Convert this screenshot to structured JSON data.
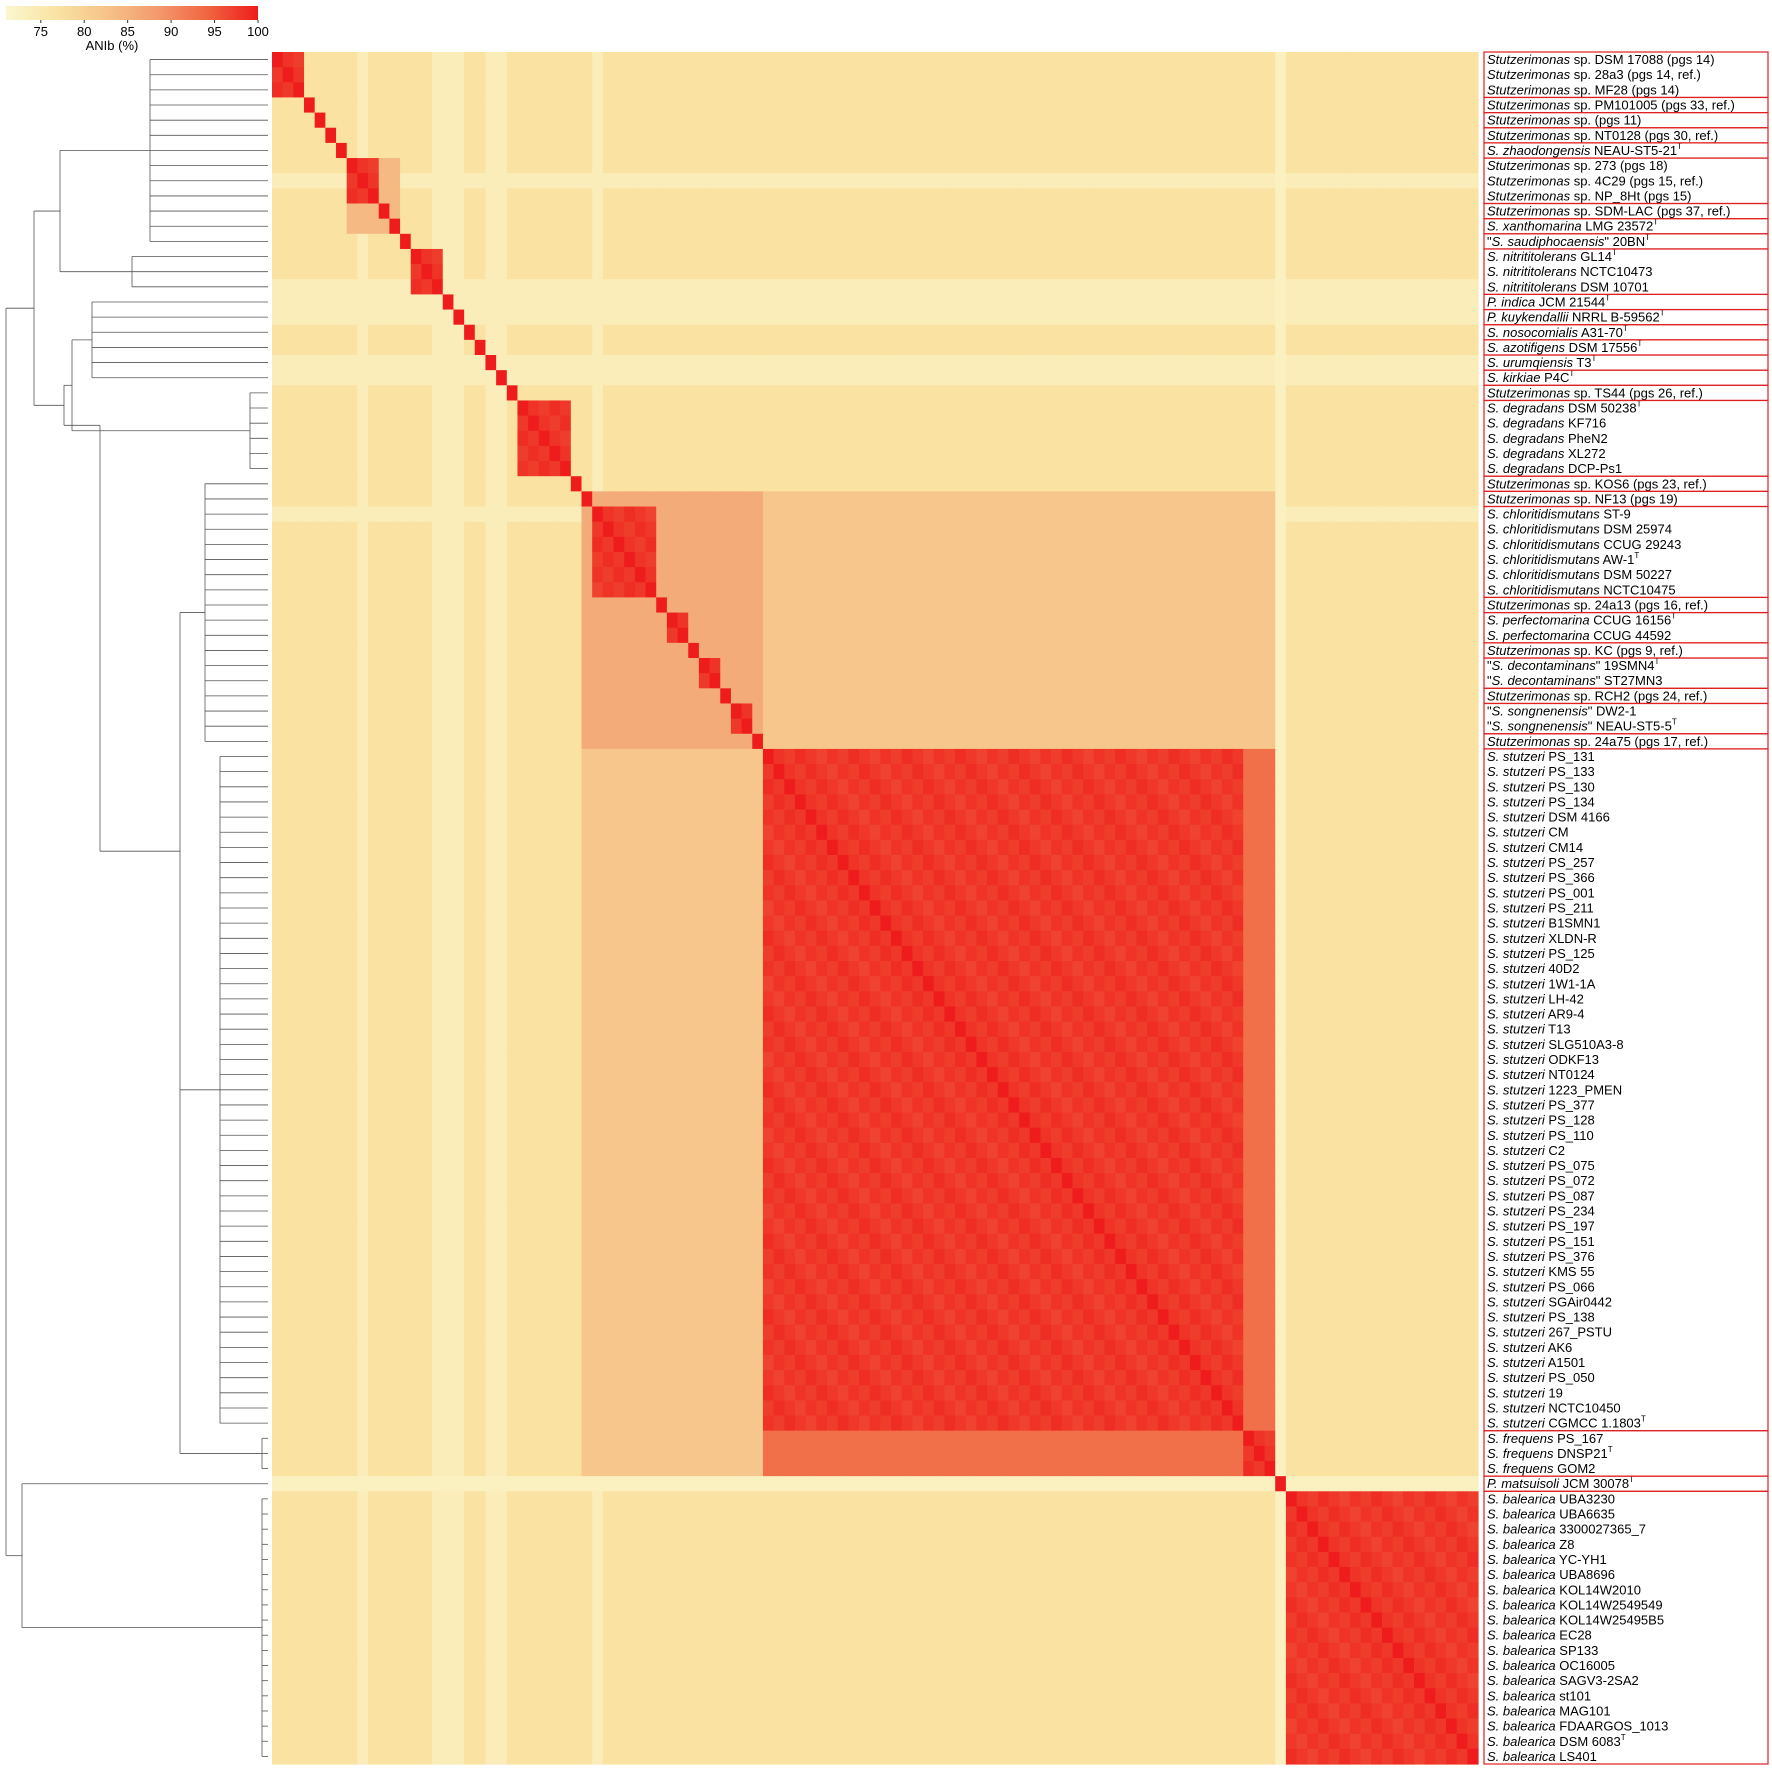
{
  "chart_data": {
    "type": "heatmap",
    "colorbar": {
      "label": "ANIb (%)",
      "ticks": [
        75,
        80,
        85,
        90,
        95,
        100
      ],
      "range": [
        71,
        100
      ],
      "colors": [
        "#fbf7d0",
        "#f9e3a3",
        "#f6c38a",
        "#f39a6e",
        "#f06540",
        "#ee1c1c"
      ]
    },
    "groups": [
      {
        "name": "Stutzerimonas sp. DSM 17088 (pgs 14)",
        "size": 3
      },
      {
        "name": "Stutzerimonas sp. PM101005 (pgs 33, ref.)",
        "size": 1
      },
      {
        "name": "Stutzerimonas sp. (pgs 11)",
        "size": 1
      },
      {
        "name": "Stutzerimonas sp. NT0128 (pgs 30, ref.)",
        "size": 1
      },
      {
        "name": "S. zhaodongensis NEAU-ST5-21T",
        "size": 1
      },
      {
        "name": "Stutzerimonas sp. 273 (pgs 18)",
        "size": 3
      },
      {
        "name": "Stutzerimonas sp. SDM-LAC (pgs 37, ref.)",
        "size": 1
      },
      {
        "name": "S. xanthomarina LMG 23572T",
        "size": 1
      },
      {
        "name": "\"S. saudiphocaensis\" 20BNT",
        "size": 1
      },
      {
        "name": "S. nitrititolerans GL14T",
        "size": 3
      },
      {
        "name": "P. indica JCM 21544T",
        "size": 1
      },
      {
        "name": "P. kuykendallii NRRL B-59562T",
        "size": 1
      },
      {
        "name": "S. nosocomialis A31-70T",
        "size": 1
      },
      {
        "name": "S. azotifigens DSM 17556T",
        "size": 1
      },
      {
        "name": "S. urumqiensis T3T",
        "size": 1
      },
      {
        "name": "S. kirkiae P4CT",
        "size": 1
      },
      {
        "name": "Stutzerimonas sp. TS44 (pgs 26, ref.)",
        "size": 1
      },
      {
        "name": "S. degradans DSM 50238T",
        "size": 5
      },
      {
        "name": "Stutzerimonas sp. KOS6 (pgs 23, ref.)",
        "size": 1
      },
      {
        "name": "Stutzerimonas sp. NF13 (pgs 19)",
        "size": 1
      },
      {
        "name": "S. chloritidismutans ST-9",
        "size": 6
      },
      {
        "name": "Stutzerimonas sp. 24a13 (pgs 16, ref.)",
        "size": 1
      },
      {
        "name": "S. perfectomarina CCUG 16156T",
        "size": 2
      },
      {
        "name": "Stutzerimonas sp. KC (pgs 9, ref.)",
        "size": 1
      },
      {
        "name": "\"S. decontaminans\" 19SMN4T",
        "size": 2
      },
      {
        "name": "Stutzerimonas sp. RCH2 (pgs 24, ref.)",
        "size": 1
      },
      {
        "name": "\"S. songnenensis\" DW2-1",
        "size": 2
      },
      {
        "name": "Stutzerimonas sp. 24a75 (pgs 17, ref.)",
        "size": 1
      },
      {
        "name": "S. stutzeri",
        "size": 45
      },
      {
        "name": "S. frequens",
        "size": 3
      },
      {
        "name": "P. matsuisoli JCM 30078T",
        "size": 1
      },
      {
        "name": "S. balearica",
        "size": 18
      }
    ],
    "rows": [
      {
        "italic": "Stutzerimonas",
        "rest": " sp. DSM 17088 (pgs 14)",
        "group": 0
      },
      {
        "italic": "Stutzerimonas",
        "rest": " sp. 28a3 (pgs 14, ref.)",
        "group": 0
      },
      {
        "italic": "Stutzerimonas",
        "rest": " sp. MF28 (pgs 14)",
        "group": 0
      },
      {
        "italic": "Stutzerimonas",
        "rest": " sp. PM101005 (pgs 33, ref.)",
        "group": 1
      },
      {
        "italic": "Stutzerimonas",
        "rest": " sp. (pgs 11)",
        "group": 2
      },
      {
        "italic": "Stutzerimonas",
        "rest": " sp. NT0128 (pgs 30, ref.)",
        "group": 3
      },
      {
        "italic": "S. zhaodongensis",
        "rest": " NEAU-ST5-21",
        "sup": "T",
        "group": 4
      },
      {
        "italic": "Stutzerimonas",
        "rest": " sp. 273 (pgs 18)",
        "group": 5
      },
      {
        "italic": "Stutzerimonas",
        "rest": " sp. 4C29 (pgs 15, ref.)",
        "group": 5
      },
      {
        "italic": "Stutzerimonas",
        "rest": " sp. NP_8Ht (pgs 15)",
        "group": 5
      },
      {
        "italic": "Stutzerimonas",
        "rest": " sp. SDM-LAC (pgs 37, ref.)",
        "group": 6
      },
      {
        "italic": "S. xanthomarina",
        "rest": " LMG 23572",
        "sup": "T",
        "group": 7
      },
      {
        "pre": "\"",
        "italic": "S. saudiphocaensis",
        "rest": "\" 20BN",
        "sup": "T",
        "group": 8
      },
      {
        "italic": "S. nitrititolerans",
        "rest": " GL14",
        "sup": "T",
        "group": 9
      },
      {
        "italic": "S. nitrititolerans",
        "rest": " NCTC10473",
        "group": 9
      },
      {
        "italic": "S. nitrititolerans",
        "rest": " DSM 10701",
        "group": 9
      },
      {
        "italic": "P. indica",
        "rest": " JCM 21544",
        "sup": "T",
        "group": 10
      },
      {
        "italic": "P. kuykendallii",
        "rest": " NRRL B-59562",
        "sup": "T",
        "group": 11
      },
      {
        "italic": "S. nosocomialis",
        "rest": " A31-70",
        "sup": "T",
        "group": 12
      },
      {
        "italic": "S. azotifigens",
        "rest": " DSM 17556",
        "sup": "T",
        "group": 13
      },
      {
        "italic": "S. urumqiensis",
        "rest": " T3",
        "sup": "T",
        "group": 14
      },
      {
        "italic": "S. kirkiae",
        "rest": " P4C",
        "sup": "T",
        "group": 15
      },
      {
        "italic": "Stutzerimonas",
        "rest": " sp. TS44 (pgs 26, ref.)",
        "group": 16
      },
      {
        "italic": "S. degradans",
        "rest": " DSM 50238",
        "sup": "T",
        "group": 17
      },
      {
        "italic": "S. degradans",
        "rest": " KF716",
        "group": 17
      },
      {
        "italic": "S. degradans",
        "rest": " PheN2",
        "group": 17
      },
      {
        "italic": "S. degradans",
        "rest": " XL272",
        "group": 17
      },
      {
        "italic": "S. degradans",
        "rest": " DCP-Ps1",
        "group": 17
      },
      {
        "italic": "Stutzerimonas",
        "rest": " sp. KOS6 (pgs 23, ref.)",
        "group": 18
      },
      {
        "italic": "Stutzerimonas",
        "rest": " sp. NF13 (pgs 19)",
        "group": 19
      },
      {
        "italic": "S. chloritidismutans",
        "rest": " ST-9",
        "group": 20
      },
      {
        "italic": "S. chloritidismutans",
        "rest": " DSM 25974",
        "group": 20
      },
      {
        "italic": "S. chloritidismutans",
        "rest": " CCUG 29243",
        "group": 20
      },
      {
        "italic": "S. chloritidismutans",
        "rest": " AW-1",
        "sup": "T",
        "group": 20
      },
      {
        "italic": "S. chloritidismutans",
        "rest": " DSM 50227",
        "group": 20
      },
      {
        "italic": "S. chloritidismutans",
        "rest": " NCTC10475",
        "group": 20
      },
      {
        "italic": "Stutzerimonas",
        "rest": " sp. 24a13 (pgs 16, ref.)",
        "group": 21
      },
      {
        "italic": "S. perfectomarina",
        "rest": " CCUG 16156",
        "sup": "T",
        "group": 22
      },
      {
        "italic": "S. perfectomarina",
        "rest": " CCUG 44592",
        "group": 22
      },
      {
        "italic": "Stutzerimonas",
        "rest": " sp. KC (pgs 9, ref.)",
        "group": 23
      },
      {
        "pre": "\"",
        "italic": "S. decontaminans",
        "rest": "\" 19SMN4",
        "sup": "T",
        "group": 24
      },
      {
        "pre": "\"",
        "italic": "S. decontaminans",
        "rest": "\" ST27MN3",
        "group": 24
      },
      {
        "italic": "Stutzerimonas",
        "rest": " sp. RCH2 (pgs 24, ref.)",
        "group": 25
      },
      {
        "pre": "\"",
        "italic": "S. songnenensis",
        "rest": "\" DW2-1",
        "group": 26
      },
      {
        "pre": "\"",
        "italic": "S. songnenensis",
        "rest": "\" NEAU-ST5-5",
        "sup": "T",
        "group": 26
      },
      {
        "italic": "Stutzerimonas",
        "rest": " sp. 24a75 (pgs 17, ref.)",
        "group": 27
      },
      {
        "italic": "S. stutzeri",
        "rest": " PS_131",
        "group": 28
      },
      {
        "italic": "S. stutzeri",
        "rest": " PS_133",
        "group": 28
      },
      {
        "italic": "S. stutzeri",
        "rest": " PS_130",
        "group": 28
      },
      {
        "italic": "S. stutzeri",
        "rest": " PS_134",
        "group": 28
      },
      {
        "italic": "S. stutzeri",
        "rest": " DSM 4166",
        "group": 28
      },
      {
        "italic": "S. stutzeri",
        "rest": " CM",
        "group": 28
      },
      {
        "italic": "S. stutzeri",
        "rest": " CM14",
        "group": 28
      },
      {
        "italic": "S. stutzeri",
        "rest": " PS_257",
        "group": 28
      },
      {
        "italic": "S. stutzeri",
        "rest": " PS_366",
        "group": 28
      },
      {
        "italic": "S. stutzeri",
        "rest": " PS_001",
        "group": 28
      },
      {
        "italic": "S. stutzeri",
        "rest": " PS_211",
        "group": 28
      },
      {
        "italic": "S. stutzeri",
        "rest": " B1SMN1",
        "group": 28
      },
      {
        "italic": "S. stutzeri",
        "rest": " XLDN-R",
        "group": 28
      },
      {
        "italic": "S. stutzeri",
        "rest": " PS_125",
        "group": 28
      },
      {
        "italic": "S. stutzeri",
        "rest": " 40D2",
        "group": 28
      },
      {
        "italic": "S. stutzeri",
        "rest": " 1W1-1A",
        "group": 28
      },
      {
        "italic": "S. stutzeri",
        "rest": " LH-42",
        "group": 28
      },
      {
        "italic": "S. stutzeri",
        "rest": " AR9-4",
        "group": 28
      },
      {
        "italic": "S. stutzeri",
        "rest": " T13",
        "group": 28
      },
      {
        "italic": "S. stutzeri",
        "rest": " SLG510A3-8",
        "group": 28
      },
      {
        "italic": "S. stutzeri",
        "rest": " ODKF13",
        "group": 28
      },
      {
        "italic": "S. stutzeri",
        "rest": " NT0124",
        "group": 28
      },
      {
        "italic": "S. stutzeri",
        "rest": " 1223_PMEN",
        "group": 28
      },
      {
        "italic": "S. stutzeri",
        "rest": " PS_377",
        "group": 28
      },
      {
        "italic": "S. stutzeri",
        "rest": " PS_128",
        "group": 28
      },
      {
        "italic": "S. stutzeri",
        "rest": " PS_110",
        "group": 28
      },
      {
        "italic": "S. stutzeri",
        "rest": " C2",
        "group": 28
      },
      {
        "italic": "S. stutzeri",
        "rest": " PS_075",
        "group": 28
      },
      {
        "italic": "S. stutzeri",
        "rest": " PS_072",
        "group": 28
      },
      {
        "italic": "S. stutzeri",
        "rest": " PS_087",
        "group": 28
      },
      {
        "italic": "S. stutzeri",
        "rest": " PS_234",
        "group": 28
      },
      {
        "italic": "S. stutzeri",
        "rest": " PS_197",
        "group": 28
      },
      {
        "italic": "S. stutzeri",
        "rest": " PS_151",
        "group": 28
      },
      {
        "italic": "S. stutzeri",
        "rest": " PS_376",
        "group": 28
      },
      {
        "italic": "S. stutzeri",
        "rest": " KMS 55",
        "group": 28
      },
      {
        "italic": "S. stutzeri",
        "rest": " PS_066",
        "group": 28
      },
      {
        "italic": "S. stutzeri",
        "rest": " SGAir0442",
        "group": 28
      },
      {
        "italic": "S. stutzeri",
        "rest": " PS_138",
        "group": 28
      },
      {
        "italic": "S. stutzeri",
        "rest": " 267_PSTU",
        "group": 28
      },
      {
        "italic": "S. stutzeri",
        "rest": " AK6",
        "group": 28
      },
      {
        "italic": "S. stutzeri",
        "rest": " A1501",
        "group": 28
      },
      {
        "italic": "S. stutzeri",
        "rest": " PS_050",
        "group": 28
      },
      {
        "italic": "S. stutzeri",
        "rest": " 19",
        "group": 28
      },
      {
        "italic": "S. stutzeri",
        "rest": " NCTC10450",
        "group": 28
      },
      {
        "italic": "S. stutzeri",
        "rest": " CGMCC 1.1803",
        "sup": "T",
        "group": 28
      },
      {
        "italic": "S. frequens",
        "rest": " PS_167",
        "group": 29
      },
      {
        "italic": "S. frequens",
        "rest": " DNSP21",
        "sup": "T",
        "group": 29
      },
      {
        "italic": "S. frequens",
        "rest": " GOM2",
        "group": 29
      },
      {
        "italic": "P. matsuisoli",
        "rest": " JCM 30078",
        "sup": "T",
        "group": 30
      },
      {
        "italic": "S. balearica",
        "rest": " UBA3230",
        "group": 31
      },
      {
        "italic": "S. balearica",
        "rest": " UBA6635",
        "group": 31
      },
      {
        "italic": "S. balearica",
        "rest": " 3300027365_7",
        "group": 31
      },
      {
        "italic": "S. balearica",
        "rest": " Z8",
        "group": 31
      },
      {
        "italic": "S. balearica",
        "rest": " YC-YH1",
        "group": 31
      },
      {
        "italic": "S. balearica",
        "rest": " UBA8696",
        "group": 31
      },
      {
        "italic": "S. balearica",
        "rest": " KOL14W2010",
        "group": 31
      },
      {
        "italic": "S. balearica",
        "rest": " KOL14W2549549",
        "group": 31
      },
      {
        "italic": "S. balearica",
        "rest": " KOL14W25495B5",
        "group": 31
      },
      {
        "italic": "S. balearica",
        "rest": " EC28",
        "group": 31
      },
      {
        "italic": "S. balearica",
        "rest": " SP133",
        "group": 31
      },
      {
        "italic": "S. balearica",
        "rest": " OC16005",
        "group": 31
      },
      {
        "italic": "S. balearica",
        "rest": " SAGV3-2SA2",
        "group": 31
      },
      {
        "italic": "S. balearica",
        "rest": " st101",
        "group": 31
      },
      {
        "italic": "S. balearica",
        "rest": " MAG101",
        "group": 31
      },
      {
        "italic": "S. balearica",
        "rest": " FDAARGOS_1013",
        "group": 31
      },
      {
        "italic": "S. balearica",
        "rest": " DSM 6083",
        "sup": "T",
        "group": 31
      },
      {
        "italic": "S. balearica",
        "rest": " LS401",
        "group": 31
      }
    ],
    "diagonal_value": 100,
    "within_group_value": 97,
    "between_cluster_values": {
      "stutzeri_frequens": 93,
      "chloritidismutans_related": 86,
      "stutzeri_vs_chloritidismutans": 82,
      "default": 77,
      "low_rows": 73
    },
    "legend_placement": "top-left",
    "grid": false
  }
}
